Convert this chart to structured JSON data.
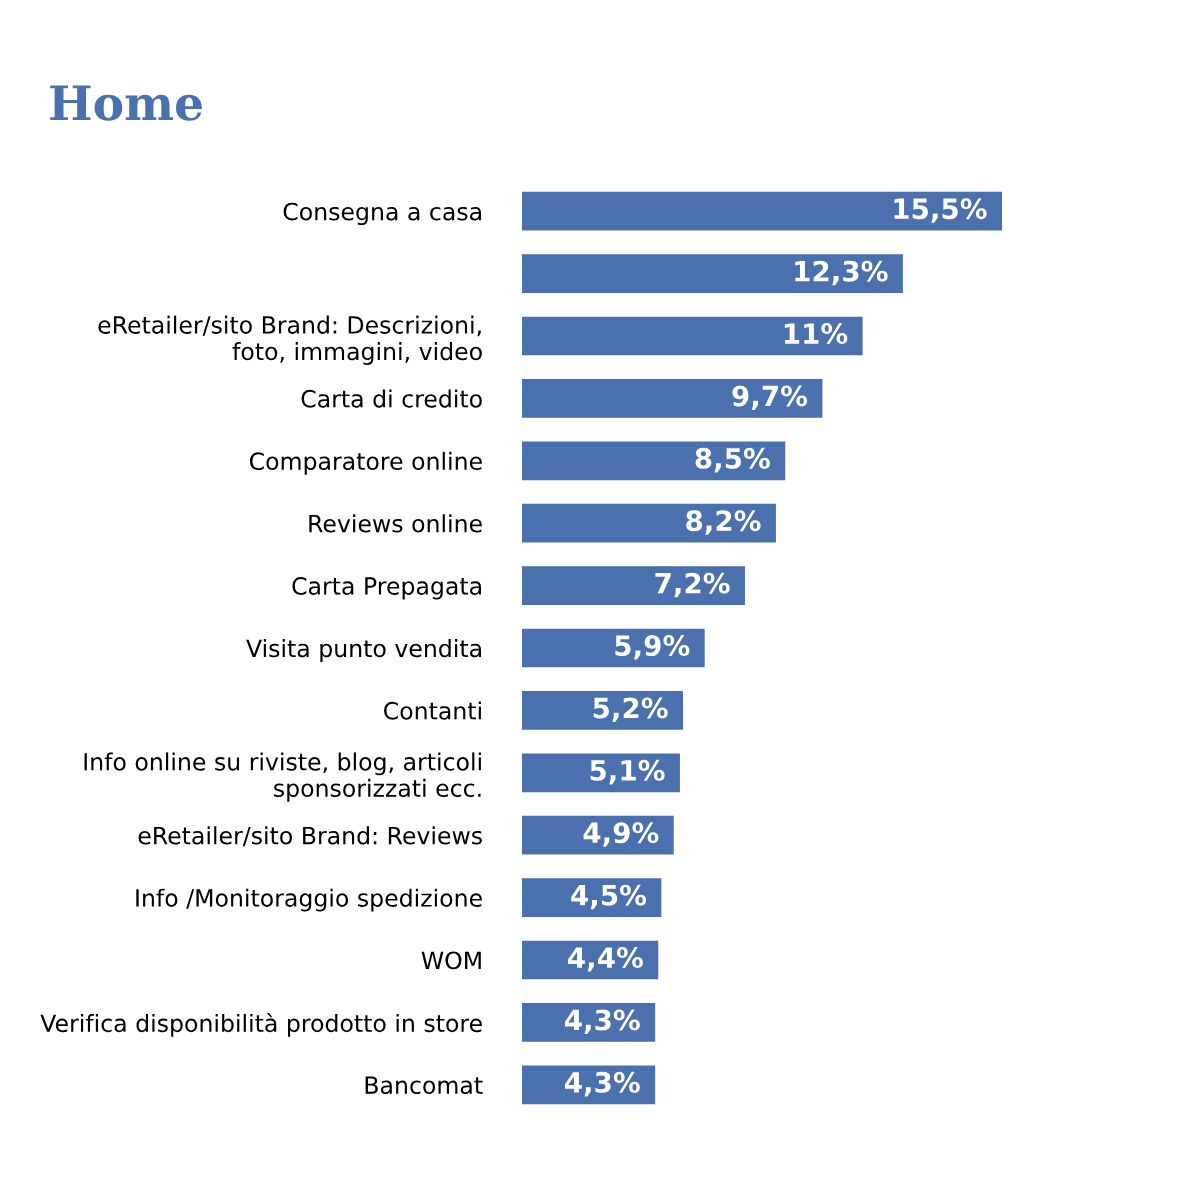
{
  "chart_data": {
    "type": "bar",
    "orientation": "horizontal",
    "title": "Home",
    "categories": [
      "Consegna a casa",
      null,
      "eRetailer/sito Brand: Descrizioni,\nfoto, immagini, video",
      "Carta di credito",
      "Comparatore online",
      "Reviews online",
      "Carta Prepagata",
      "Visita punto vendita",
      "Contanti",
      "Info online su riviste, blog, articoli\nsponsorizzati ecc.",
      "eRetailer/sito Brand: Reviews",
      "Info /Monitoraggio spedizione",
      "WOM",
      "Verifica disponibilità prodotto in store",
      "Bancomat"
    ],
    "values": [
      15.5,
      12.3,
      11,
      9.7,
      8.5,
      8.2,
      7.2,
      5.9,
      5.2,
      5.1,
      4.9,
      4.5,
      4.4,
      4.3,
      4.3
    ],
    "value_labels": [
      "15,5%",
      "12,3%",
      "11%",
      "9,7%",
      "8,5%",
      "8,2%",
      "7,2%",
      "5,9%",
      "5,2%",
      "5,1%",
      "4,9%",
      "4,5%",
      "4,4%",
      "4,3%",
      "4,3%"
    ],
    "color": "#4a70ad"
  }
}
